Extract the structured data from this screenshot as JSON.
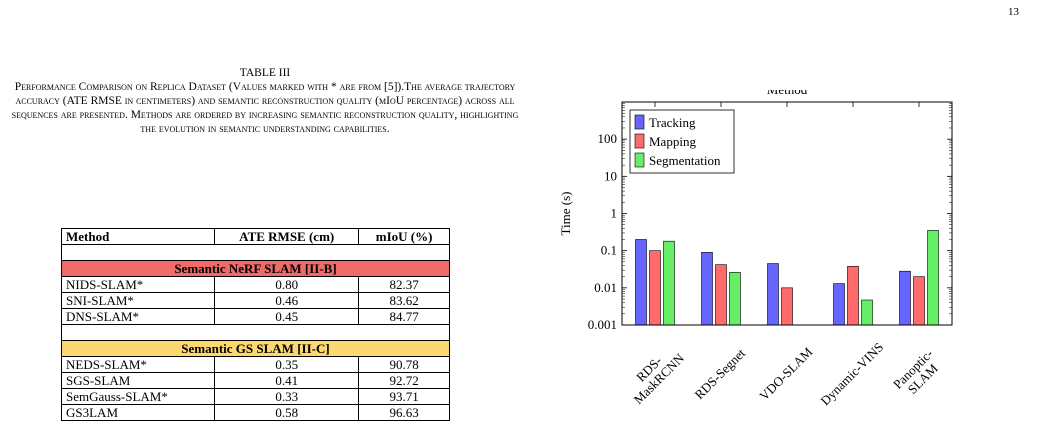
{
  "page": {
    "number": "13"
  },
  "table": {
    "title": "TABLE III",
    "caption": "Performance Comparison on Replica Dataset (Values marked with * are from [5]).The average trajectory accuracy (ATE RMSE in centimeters) and semantic reconstruction quality (mIoU percentage) across all sequences are presented. Methods are ordered by increasing semantic reconstruction quality, highlighting the evolution in semantic understanding capabilities.",
    "headers": [
      "Method",
      "ATE RMSE (cm)",
      "mIoU (%)"
    ],
    "groups": [
      {
        "name": "Semantic NeRF SLAM [II-B]",
        "color": "#f06a6a",
        "rows": [
          [
            "NIDS-SLAM*",
            "0.80",
            "82.37"
          ],
          [
            "SNI-SLAM*",
            "0.46",
            "83.62"
          ],
          [
            "DNS-SLAM*",
            "0.45",
            "84.77"
          ]
        ]
      },
      {
        "name": "Semantic GS SLAM [II-C]",
        "color": "#fbd870",
        "rows": [
          [
            "NEDS-SLAM*",
            "0.35",
            "90.78"
          ],
          [
            "SGS-SLAM",
            "0.41",
            "92.72"
          ],
          [
            "SemGauss-SLAM*",
            "0.33",
            "93.71"
          ],
          [
            "GS3LAM",
            "0.58",
            "96.63"
          ]
        ]
      }
    ]
  },
  "chart_data": {
    "type": "bar",
    "title": "Method",
    "xlabel": "",
    "ylabel": "Time (s)",
    "yscale": "log",
    "ylim": [
      0.001,
      1000
    ],
    "yticks": [
      0.001,
      0.01,
      0.1,
      1,
      10,
      100
    ],
    "ytick_labels": [
      "0.001",
      "0.01",
      "0.1",
      "1",
      "10",
      "100"
    ],
    "categories": [
      "RDS-MaskRCNN",
      "RDS-Segnet",
      "VDO-SLAM",
      "Dynamic-VINS",
      "Panoptic-SLAM"
    ],
    "category_labels": [
      [
        "RDS-",
        "MaskRCNN"
      ],
      [
        "RDS-Segnet"
      ],
      [
        "VDO-SLAM"
      ],
      [
        "Dynamic-VINS"
      ],
      [
        "Panoptic-",
        "SLAM"
      ]
    ],
    "series": [
      {
        "name": "Tracking",
        "color": "#6666ff",
        "values": [
          0.2,
          0.09,
          0.045,
          0.013,
          0.028
        ]
      },
      {
        "name": "Mapping",
        "color": "#ff6a6a",
        "values": [
          0.1,
          0.042,
          0.01,
          0.038,
          0.02
        ]
      },
      {
        "name": "Segmentation",
        "color": "#66ee66",
        "values": [
          0.18,
          0.026,
          null,
          0.0047,
          0.35
        ]
      }
    ],
    "legend_position": "top-left",
    "grid": false
  }
}
